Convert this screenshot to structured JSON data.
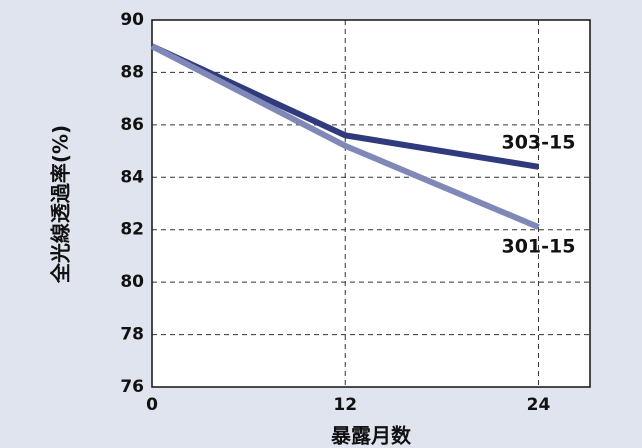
{
  "chart_data": {
    "type": "line",
    "x": [
      0,
      12,
      24
    ],
    "xlabel": "暴露月数",
    "ylabel": "全光線透過率(%)",
    "xlim": [
      0,
      27.2
    ],
    "xticks": [
      0,
      12,
      24
    ],
    "ylim": [
      76,
      90
    ],
    "yticks": [
      76,
      78,
      80,
      82,
      84,
      86,
      88,
      90
    ],
    "grid": true,
    "series": [
      {
        "name": "303-15",
        "color": "#2f3b7c",
        "values": [
          89.0,
          85.6,
          84.4
        ]
      },
      {
        "name": "301-15",
        "color": "#8088b8",
        "values": [
          89.0,
          85.2,
          82.1
        ]
      }
    ]
  }
}
